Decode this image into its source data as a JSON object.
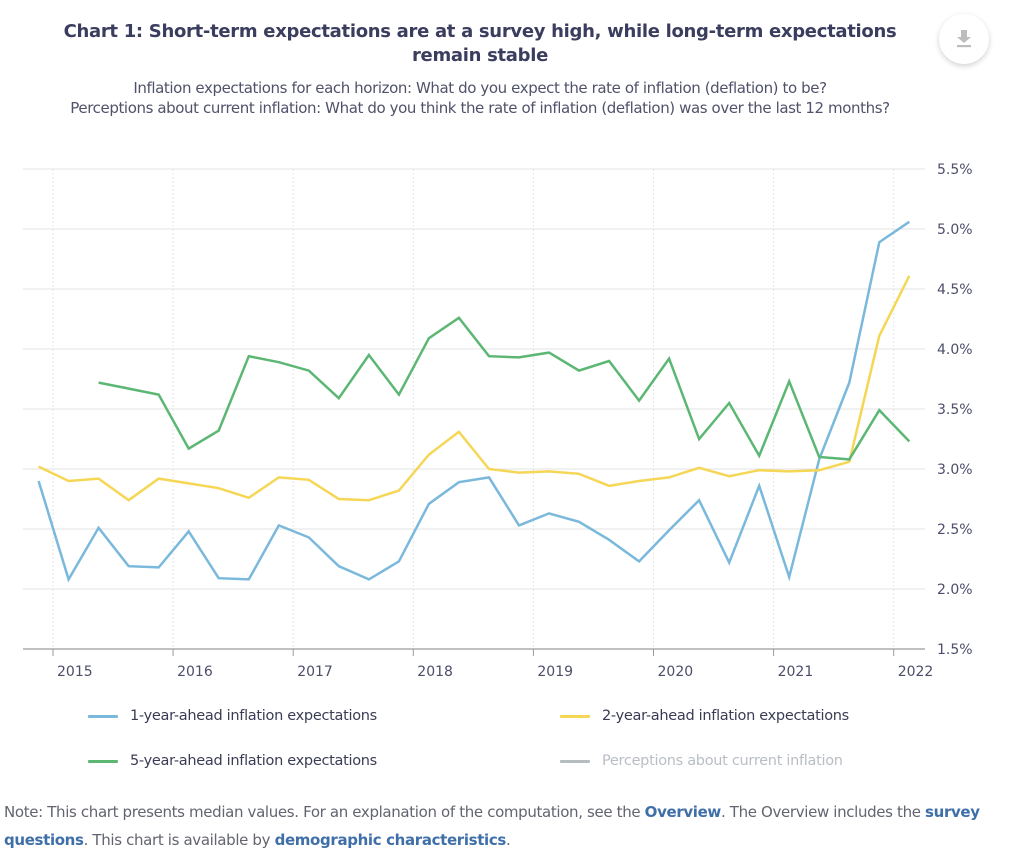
{
  "header": {
    "title": "Chart 1: Short-term expectations are at a survey high, while long-term expectations remain stable",
    "subtitle_line1": "Inflation expectations for each horizon: What do you expect the rate of inflation (deflation) to be?",
    "subtitle_line2": "Perceptions about current inflation: What do you think the rate of inflation (deflation) was over the last 12 months?",
    "download_icon": "download-icon"
  },
  "colors": {
    "series_1yr": "#7ab8dc",
    "series_2yr": "#f5d655",
    "series_5yr": "#5cb774",
    "series_perceptions": "#b5bdc0",
    "link": "#3f6fa8"
  },
  "chart_data": {
    "type": "line",
    "title": "Chart 1: Short-term expectations are at a survey high, while long-term expectations remain stable",
    "xlabel": "",
    "ylabel": "",
    "x_unit": "year (quarterly observations)",
    "xlim": [
      2014.75,
      2022.26
    ],
    "ylim": [
      1.5,
      5.5
    ],
    "grid": true,
    "y_axis_position": "right",
    "legend_position": "bottom",
    "x_ticks": [
      "2015",
      "2016",
      "2017",
      "2018",
      "2019",
      "2020",
      "2021",
      "2022"
    ],
    "x_tick_values": [
      2015,
      2016,
      2017,
      2018,
      2019,
      2020,
      2021,
      2022
    ],
    "y_ticks": [
      "1.5%",
      "2.0%",
      "2.5%",
      "3.0%",
      "3.5%",
      "4.0%",
      "4.5%",
      "5.0%",
      "5.5%"
    ],
    "y_tick_values": [
      1.5,
      2.0,
      2.5,
      3.0,
      3.5,
      4.0,
      4.5,
      5.0,
      5.5
    ],
    "x": [
      2014.88,
      2015.13,
      2015.38,
      2015.63,
      2015.88,
      2016.13,
      2016.38,
      2016.63,
      2016.88,
      2017.13,
      2017.38,
      2017.63,
      2017.88,
      2018.13,
      2018.38,
      2018.63,
      2018.88,
      2019.13,
      2019.38,
      2019.63,
      2019.88,
      2020.13,
      2020.38,
      2020.63,
      2020.88,
      2021.13,
      2021.38,
      2021.63,
      2021.88,
      2022.13
    ],
    "series": [
      {
        "name": "1-year-ahead inflation expectations",
        "color": "#7ab8dc",
        "values": [
          2.9,
          2.08,
          2.51,
          2.19,
          2.18,
          2.48,
          2.09,
          2.08,
          2.53,
          2.43,
          2.19,
          2.08,
          2.23,
          2.71,
          2.89,
          2.93,
          2.53,
          2.63,
          2.56,
          2.41,
          2.23,
          2.49,
          2.74,
          2.22,
          2.86,
          2.1,
          3.08,
          3.72,
          4.89,
          5.06
        ]
      },
      {
        "name": "2-year-ahead inflation expectations",
        "color": "#f5d655",
        "values": [
          3.02,
          2.9,
          2.92,
          2.74,
          2.92,
          2.88,
          2.84,
          2.76,
          2.93,
          2.91,
          2.75,
          2.74,
          2.82,
          3.12,
          3.31,
          3.0,
          2.97,
          2.98,
          2.96,
          2.86,
          2.9,
          2.93,
          3.01,
          2.94,
          2.99,
          2.98,
          2.99,
          3.06,
          4.11,
          4.61
        ]
      },
      {
        "name": "5-year-ahead inflation expectations",
        "color": "#5cb774",
        "values": [
          null,
          null,
          3.72,
          3.67,
          3.62,
          3.17,
          3.32,
          3.94,
          3.89,
          3.82,
          3.59,
          3.95,
          3.62,
          4.09,
          4.26,
          3.94,
          3.93,
          3.97,
          3.82,
          3.9,
          3.57,
          3.92,
          3.25,
          3.55,
          3.11,
          3.73,
          3.1,
          3.08,
          3.49,
          3.23
        ]
      },
      {
        "name": "Perceptions about current inflation",
        "color": "#b5bdc0",
        "hidden": true,
        "values": []
      }
    ]
  },
  "legend": {
    "items": [
      {
        "label": "1-year-ahead inflation expectations",
        "color": "#7ab8dc",
        "active": true
      },
      {
        "label": "2-year-ahead inflation expectations",
        "color": "#f5d655",
        "active": true
      },
      {
        "label": "5-year-ahead inflation expectations",
        "color": "#5cb774",
        "active": true
      },
      {
        "label": "Perceptions about current inflation",
        "color": "#b5bdc0",
        "active": false
      }
    ]
  },
  "note": {
    "part1": "Note: This chart presents median values. For an explanation of the computation, see the ",
    "link_overview": "Overview",
    "part2": ". The Overview includes the ",
    "link_survey": "survey questions",
    "part3": ". This chart is available by ",
    "link_demographic": "demographic characteristics",
    "part4": "."
  }
}
